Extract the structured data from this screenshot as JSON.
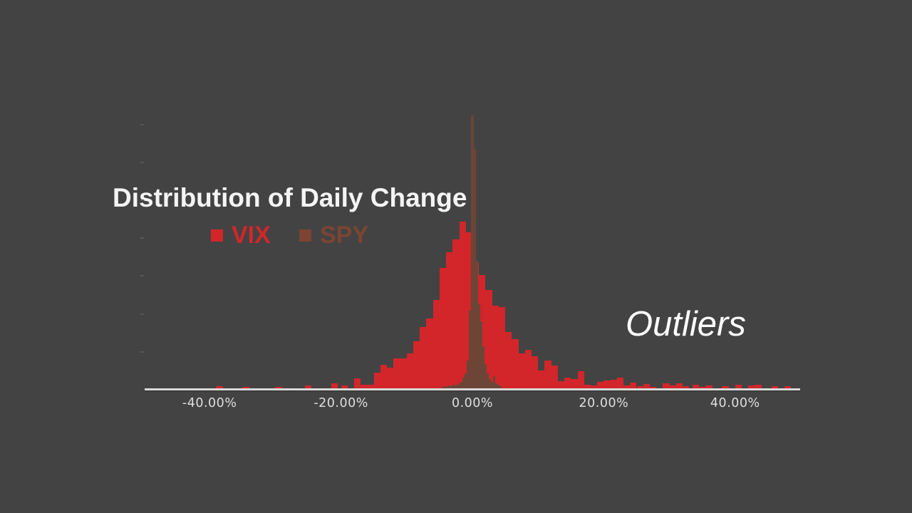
{
  "window": {
    "background_color": "#434343"
  },
  "chart_data": {
    "type": "bar",
    "subtype": "overlaid-histogram",
    "title": "Distribution of Daily Change",
    "xlabel": "",
    "ylabel": "",
    "annotation_text": "Outliers",
    "legend_position": "top-left-below-title",
    "x_axis": {
      "xlim_pct": [
        -50,
        50
      ],
      "ticks": [
        {
          "label": "-40.00%",
          "value": -40
        },
        {
          "label": "-20.00%",
          "value": -20
        },
        {
          "label": "0.00%",
          "value": 0
        },
        {
          "label": "20.00%",
          "value": 20
        },
        {
          "label": "40.00%",
          "value": 40
        }
      ]
    },
    "y_axis": {
      "labels_visible": false,
      "unit": "relative frequency (arbitrary units, unlabeled axis)",
      "faint_tick_count": 7
    },
    "series": [
      {
        "name": "VIX",
        "color": "#d2262b",
        "legend_text_color": "#d2262b",
        "bin_width_pct": 1.0,
        "bins": [
          [
            -38.5,
            4
          ],
          [
            -34.5,
            3
          ],
          [
            -29.5,
            3
          ],
          [
            -25,
            5
          ],
          [
            -21,
            8
          ],
          [
            -19.5,
            5
          ],
          [
            -17.5,
            15
          ],
          [
            -16.5,
            6
          ],
          [
            -15.5,
            6
          ],
          [
            -14.5,
            23
          ],
          [
            -13.5,
            34
          ],
          [
            -12.5,
            30
          ],
          [
            -11.5,
            43
          ],
          [
            -10.5,
            43
          ],
          [
            -9.5,
            50
          ],
          [
            -8.5,
            67
          ],
          [
            -7.5,
            87
          ],
          [
            -6.5,
            99
          ],
          [
            -5.5,
            125
          ],
          [
            -4.5,
            170
          ],
          [
            -3.5,
            192
          ],
          [
            -2.5,
            210
          ],
          [
            -1.5,
            235
          ],
          [
            -0.5,
            220
          ],
          [
            0.5,
            178
          ],
          [
            1.5,
            160
          ],
          [
            2.5,
            139
          ],
          [
            3.5,
            117
          ],
          [
            4.5,
            115
          ],
          [
            5.5,
            80
          ],
          [
            6.5,
            70
          ],
          [
            7.5,
            50
          ],
          [
            8.5,
            55
          ],
          [
            9.5,
            46
          ],
          [
            10.5,
            26
          ],
          [
            11.5,
            40
          ],
          [
            12.5,
            33
          ],
          [
            13.5,
            11
          ],
          [
            14.5,
            16
          ],
          [
            15.5,
            14
          ],
          [
            16.5,
            25
          ],
          [
            17.5,
            6
          ],
          [
            18.5,
            5
          ],
          [
            19.5,
            10
          ],
          [
            20.5,
            12
          ],
          [
            21.5,
            13
          ],
          [
            22.5,
            16
          ],
          [
            23.5,
            5
          ],
          [
            24.5,
            9
          ],
          [
            25.5,
            4
          ],
          [
            26.5,
            7
          ],
          [
            27.5,
            3
          ],
          [
            29.5,
            8
          ],
          [
            30.5,
            5
          ],
          [
            31.5,
            8
          ],
          [
            32.5,
            4
          ],
          [
            34,
            6
          ],
          [
            35,
            3
          ],
          [
            36,
            5
          ],
          [
            38.5,
            4
          ],
          [
            40.5,
            6
          ],
          [
            42.5,
            5
          ],
          [
            43.5,
            6
          ],
          [
            46,
            4
          ],
          [
            48,
            4
          ]
        ]
      },
      {
        "name": "SPY",
        "color": "#6c4537",
        "legend_text_color": "#7b4433",
        "bin_width_pct": 0.3333,
        "bins": [
          [
            -4.5,
            3
          ],
          [
            -4.17,
            4
          ],
          [
            -3.83,
            3
          ],
          [
            -3.5,
            5
          ],
          [
            -3.17,
            4
          ],
          [
            -2.83,
            6
          ],
          [
            -2.5,
            5
          ],
          [
            -2.33,
            6
          ],
          [
            -2,
            8
          ],
          [
            -1.67,
            10
          ],
          [
            -1.33,
            16
          ],
          [
            -1,
            22
          ],
          [
            -0.67,
            40
          ],
          [
            -0.33,
            110
          ],
          [
            0,
            384
          ],
          [
            0.33,
            337
          ],
          [
            0.67,
            180
          ],
          [
            1,
            120
          ],
          [
            1.33,
            95
          ],
          [
            1.67,
            60
          ],
          [
            2,
            35
          ],
          [
            2.33,
            22
          ],
          [
            2.67,
            14
          ],
          [
            3,
            10
          ],
          [
            3.33,
            18
          ],
          [
            3.67,
            8
          ],
          [
            4,
            6
          ],
          [
            4.33,
            4
          ]
        ]
      }
    ]
  }
}
